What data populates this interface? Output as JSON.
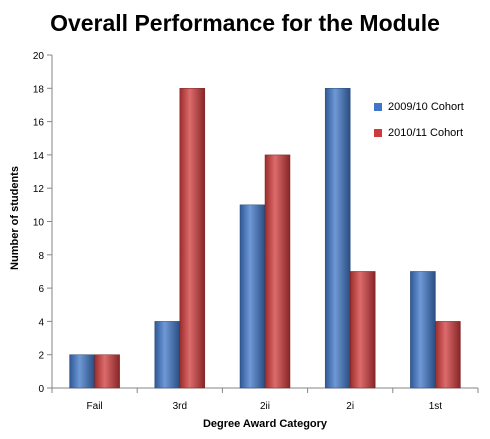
{
  "chart_data": {
    "type": "bar",
    "title": "Overall Performance for the Module",
    "xlabel": "Degree Award Category",
    "ylabel": "Number of students",
    "categories": [
      "Fail",
      "3rd",
      "2ii",
      "2i",
      "1st"
    ],
    "series": [
      {
        "name": "2009/10 Cohort",
        "values": [
          2,
          4,
          11,
          18,
          7
        ],
        "color": "#3f76c8"
      },
      {
        "name": "2010/11 Cohort",
        "values": [
          2,
          18,
          14,
          7,
          4
        ],
        "color": "#d0393b"
      }
    ],
    "ylim": [
      0,
      20
    ],
    "yticks": [
      0,
      2,
      4,
      6,
      8,
      10,
      12,
      14,
      16,
      18,
      20
    ],
    "grid": false,
    "legend_position": "right"
  }
}
